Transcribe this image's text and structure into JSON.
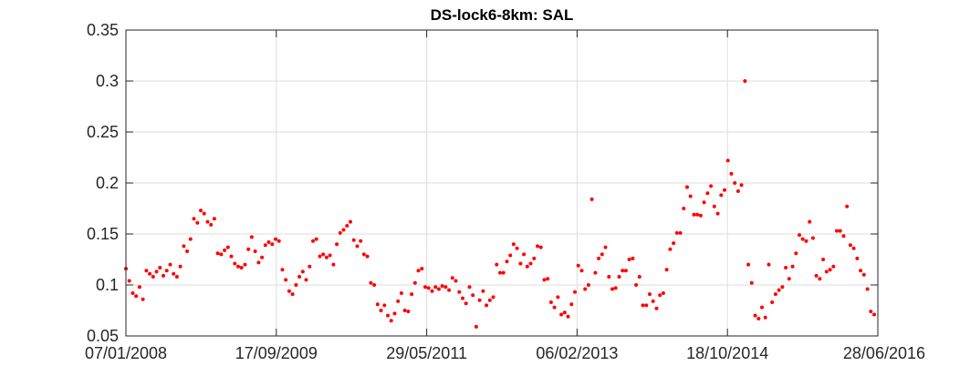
{
  "chart_data": {
    "type": "scatter",
    "title": "DS-lock6-8km: SAL",
    "xlabel": "",
    "ylabel": "",
    "x_axis_type": "date",
    "xlim": [
      "07/01/2008",
      "28/06/2016"
    ],
    "ylim": [
      0.05,
      0.35
    ],
    "x_ticks": [
      "07/01/2008",
      "17/09/2009",
      "29/05/2011",
      "06/02/2013",
      "18/10/2014",
      "28/06/2016"
    ],
    "y_ticks": [
      "0.05",
      "0.1",
      "0.15",
      "0.2",
      "0.25",
      "0.3",
      "0.35"
    ],
    "grid": true,
    "marker_color": "#ff0000",
    "series": [
      {
        "name": "",
        "points": [
          [
            "07/01/2008",
            0.116
          ],
          [
            "21/01/2008",
            0.104
          ],
          [
            "04/02/2008",
            0.092
          ],
          [
            "18/02/2008",
            0.089
          ],
          [
            "03/03/2008",
            0.098
          ],
          [
            "17/03/2008",
            0.086
          ],
          [
            "31/03/2008",
            0.114
          ],
          [
            "14/04/2008",
            0.111
          ],
          [
            "28/04/2008",
            0.108
          ],
          [
            "12/05/2008",
            0.113
          ],
          [
            "26/05/2008",
            0.117
          ],
          [
            "09/06/2008",
            0.109
          ],
          [
            "23/06/2008",
            0.114
          ],
          [
            "07/07/2008",
            0.12
          ],
          [
            "21/07/2008",
            0.111
          ],
          [
            "04/08/2008",
            0.108
          ],
          [
            "18/08/2008",
            0.118
          ],
          [
            "01/09/2008",
            0.138
          ],
          [
            "15/09/2008",
            0.133
          ],
          [
            "29/09/2008",
            0.145
          ],
          [
            "13/10/2008",
            0.165
          ],
          [
            "27/10/2008",
            0.161
          ],
          [
            "10/11/2008",
            0.173
          ],
          [
            "24/11/2008",
            0.17
          ],
          [
            "08/12/2008",
            0.162
          ],
          [
            "22/12/2008",
            0.159
          ],
          [
            "05/01/2009",
            0.165
          ],
          [
            "19/01/2009",
            0.131
          ],
          [
            "02/02/2009",
            0.13
          ],
          [
            "16/02/2009",
            0.134
          ],
          [
            "02/03/2009",
            0.137
          ],
          [
            "16/03/2009",
            0.128
          ],
          [
            "30/03/2009",
            0.121
          ],
          [
            "13/04/2009",
            0.118
          ],
          [
            "27/04/2009",
            0.117
          ],
          [
            "11/05/2009",
            0.12
          ],
          [
            "25/05/2009",
            0.135
          ],
          [
            "08/06/2009",
            0.147
          ],
          [
            "22/06/2009",
            0.133
          ],
          [
            "06/07/2009",
            0.122
          ],
          [
            "20/07/2009",
            0.127
          ],
          [
            "03/08/2009",
            0.139
          ],
          [
            "17/08/2009",
            0.142
          ],
          [
            "31/08/2009",
            0.14
          ],
          [
            "14/09/2009",
            0.145
          ],
          [
            "28/09/2009",
            0.143
          ],
          [
            "12/10/2009",
            0.115
          ],
          [
            "26/10/2009",
            0.105
          ],
          [
            "09/11/2009",
            0.094
          ],
          [
            "23/11/2009",
            0.091
          ],
          [
            "07/12/2009",
            0.1
          ],
          [
            "21/12/2009",
            0.108
          ],
          [
            "04/01/2010",
            0.113
          ],
          [
            "18/01/2010",
            0.105
          ],
          [
            "01/02/2010",
            0.118
          ],
          [
            "15/02/2010",
            0.143
          ],
          [
            "01/03/2010",
            0.145
          ],
          [
            "15/03/2010",
            0.128
          ],
          [
            "29/03/2010",
            0.13
          ],
          [
            "12/04/2010",
            0.127
          ],
          [
            "26/04/2010",
            0.129
          ],
          [
            "10/05/2010",
            0.12
          ],
          [
            "24/05/2010",
            0.14
          ],
          [
            "07/06/2010",
            0.151
          ],
          [
            "21/06/2010",
            0.154
          ],
          [
            "05/07/2010",
            0.158
          ],
          [
            "19/07/2010",
            0.162
          ],
          [
            "02/08/2010",
            0.144
          ],
          [
            "16/08/2010",
            0.138
          ],
          [
            "30/08/2010",
            0.143
          ],
          [
            "13/09/2010",
            0.13
          ],
          [
            "27/09/2010",
            0.128
          ],
          [
            "11/10/2010",
            0.102
          ],
          [
            "25/10/2010",
            0.1
          ],
          [
            "08/11/2010",
            0.081
          ],
          [
            "22/11/2010",
            0.075
          ],
          [
            "06/12/2010",
            0.08
          ],
          [
            "20/12/2010",
            0.07
          ],
          [
            "03/01/2011",
            0.065
          ],
          [
            "17/01/2011",
            0.072
          ],
          [
            "31/01/2011",
            0.084
          ],
          [
            "14/02/2011",
            0.092
          ],
          [
            "28/02/2011",
            0.075
          ],
          [
            "14/03/2011",
            0.074
          ],
          [
            "28/03/2011",
            0.091
          ],
          [
            "11/04/2011",
            0.102
          ],
          [
            "25/04/2011",
            0.114
          ],
          [
            "09/05/2011",
            0.116
          ],
          [
            "23/05/2011",
            0.098
          ],
          [
            "06/06/2011",
            0.097
          ],
          [
            "20/06/2011",
            0.094
          ],
          [
            "04/07/2011",
            0.098
          ],
          [
            "18/07/2011",
            0.096
          ],
          [
            "01/08/2011",
            0.099
          ],
          [
            "15/08/2011",
            0.098
          ],
          [
            "29/08/2011",
            0.095
          ],
          [
            "12/09/2011",
            0.107
          ],
          [
            "26/09/2011",
            0.104
          ],
          [
            "10/10/2011",
            0.093
          ],
          [
            "24/10/2011",
            0.087
          ],
          [
            "07/11/2011",
            0.082
          ],
          [
            "21/11/2011",
            0.098
          ],
          [
            "05/12/2011",
            0.09
          ],
          [
            "19/12/2011",
            0.059
          ],
          [
            "02/01/2012",
            0.085
          ],
          [
            "16/01/2012",
            0.094
          ],
          [
            "30/01/2012",
            0.08
          ],
          [
            "13/02/2012",
            0.085
          ],
          [
            "27/02/2012",
            0.088
          ],
          [
            "12/03/2012",
            0.12
          ],
          [
            "26/03/2012",
            0.112
          ],
          [
            "09/04/2012",
            0.112
          ],
          [
            "23/04/2012",
            0.123
          ],
          [
            "07/05/2012",
            0.129
          ],
          [
            "21/05/2012",
            0.14
          ],
          [
            "04/06/2012",
            0.136
          ],
          [
            "18/06/2012",
            0.121
          ],
          [
            "02/07/2012",
            0.13
          ],
          [
            "16/07/2012",
            0.118
          ],
          [
            "30/07/2012",
            0.121
          ],
          [
            "13/08/2012",
            0.126
          ],
          [
            "27/08/2012",
            0.138
          ],
          [
            "10/09/2012",
            0.137
          ],
          [
            "24/09/2012",
            0.105
          ],
          [
            "08/10/2012",
            0.106
          ],
          [
            "22/10/2012",
            0.083
          ],
          [
            "05/11/2012",
            0.078
          ],
          [
            "19/11/2012",
            0.088
          ],
          [
            "03/12/2012",
            0.071
          ],
          [
            "17/12/2012",
            0.073
          ],
          [
            "31/12/2012",
            0.069
          ],
          [
            "14/01/2013",
            0.081
          ],
          [
            "28/01/2013",
            0.093
          ],
          [
            "11/02/2013",
            0.119
          ],
          [
            "25/02/2013",
            0.114
          ],
          [
            "11/03/2013",
            0.096
          ],
          [
            "25/03/2013",
            0.1
          ],
          [
            "08/04/2013",
            0.184
          ],
          [
            "22/04/2013",
            0.112
          ],
          [
            "06/05/2013",
            0.126
          ],
          [
            "20/05/2013",
            0.13
          ],
          [
            "03/06/2013",
            0.137
          ],
          [
            "17/06/2013",
            0.108
          ],
          [
            "01/07/2013",
            0.096
          ],
          [
            "15/07/2013",
            0.097
          ],
          [
            "29/07/2013",
            0.108
          ],
          [
            "12/08/2013",
            0.114
          ],
          [
            "26/08/2013",
            0.114
          ],
          [
            "09/09/2013",
            0.125
          ],
          [
            "23/09/2013",
            0.126
          ],
          [
            "07/10/2013",
            0.1
          ],
          [
            "21/10/2013",
            0.108
          ],
          [
            "04/11/2013",
            0.08
          ],
          [
            "18/11/2013",
            0.08
          ],
          [
            "02/12/2013",
            0.091
          ],
          [
            "16/12/2013",
            0.084
          ],
          [
            "30/12/2013",
            0.077
          ],
          [
            "13/01/2014",
            0.09
          ],
          [
            "27/01/2014",
            0.092
          ],
          [
            "10/02/2014",
            0.115
          ],
          [
            "24/02/2014",
            0.135
          ],
          [
            "10/03/2014",
            0.141
          ],
          [
            "24/03/2014",
            0.151
          ],
          [
            "07/04/2014",
            0.151
          ],
          [
            "21/04/2014",
            0.175
          ],
          [
            "05/05/2014",
            0.196
          ],
          [
            "19/05/2014",
            0.187
          ],
          [
            "02/06/2014",
            0.169
          ],
          [
            "16/06/2014",
            0.169
          ],
          [
            "30/06/2014",
            0.168
          ],
          [
            "14/07/2014",
            0.181
          ],
          [
            "28/07/2014",
            0.19
          ],
          [
            "11/08/2014",
            0.197
          ],
          [
            "25/08/2014",
            0.177
          ],
          [
            "08/09/2014",
            0.17
          ],
          [
            "22/09/2014",
            0.188
          ],
          [
            "06/10/2014",
            0.193
          ],
          [
            "20/10/2014",
            0.222
          ],
          [
            "03/11/2014",
            0.209
          ],
          [
            "17/11/2014",
            0.2
          ],
          [
            "01/12/2014",
            0.192
          ],
          [
            "15/12/2014",
            0.198
          ],
          [
            "29/12/2014",
            0.3
          ],
          [
            "12/01/2015",
            0.12
          ],
          [
            "26/01/2015",
            0.102
          ],
          [
            "09/02/2015",
            0.07
          ],
          [
            "23/02/2015",
            0.067
          ],
          [
            "09/03/2015",
            0.078
          ],
          [
            "23/03/2015",
            0.068
          ],
          [
            "06/04/2015",
            0.12
          ],
          [
            "20/04/2015",
            0.083
          ],
          [
            "04/05/2015",
            0.091
          ],
          [
            "18/05/2015",
            0.095
          ],
          [
            "01/06/2015",
            0.098
          ],
          [
            "15/06/2015",
            0.117
          ],
          [
            "29/06/2015",
            0.106
          ],
          [
            "13/07/2015",
            0.118
          ],
          [
            "27/07/2015",
            0.131
          ],
          [
            "10/08/2015",
            0.149
          ],
          [
            "24/08/2015",
            0.145
          ],
          [
            "07/09/2015",
            0.143
          ],
          [
            "21/09/2015",
            0.162
          ],
          [
            "05/10/2015",
            0.146
          ],
          [
            "19/10/2015",
            0.109
          ],
          [
            "02/11/2015",
            0.106
          ],
          [
            "16/11/2015",
            0.125
          ],
          [
            "30/11/2015",
            0.113
          ],
          [
            "14/12/2015",
            0.115
          ],
          [
            "28/12/2015",
            0.118
          ],
          [
            "11/01/2016",
            0.153
          ],
          [
            "25/01/2016",
            0.153
          ],
          [
            "08/02/2016",
            0.148
          ],
          [
            "22/02/2016",
            0.177
          ],
          [
            "07/03/2016",
            0.139
          ],
          [
            "21/03/2016",
            0.136
          ],
          [
            "04/04/2016",
            0.126
          ],
          [
            "18/04/2016",
            0.114
          ],
          [
            "02/05/2016",
            0.11
          ],
          [
            "16/05/2016",
            0.096
          ],
          [
            "30/05/2016",
            0.074
          ],
          [
            "13/06/2016",
            0.071
          ]
        ]
      }
    ]
  }
}
